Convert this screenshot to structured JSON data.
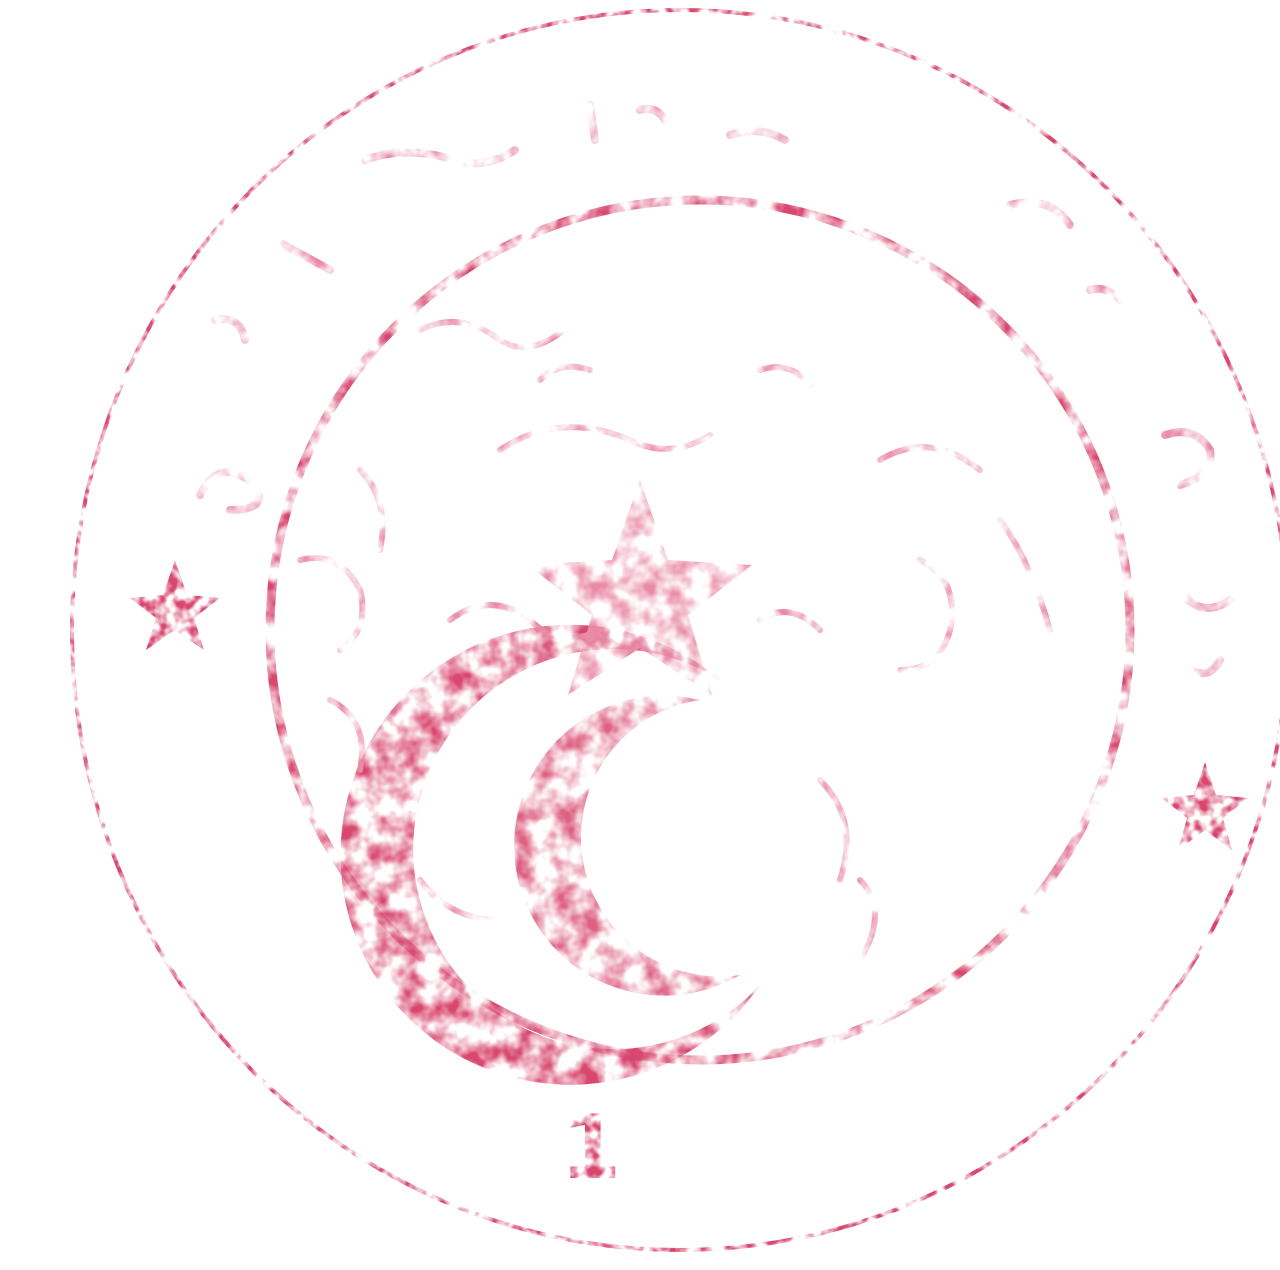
{
  "stamp": {
    "kind": "official seal",
    "ink_color": "#d8466e",
    "ink_color_faint": "#e98aa6",
    "number": "1",
    "outer_ring_text": "illegible",
    "emblem": "crescent-and-star"
  }
}
